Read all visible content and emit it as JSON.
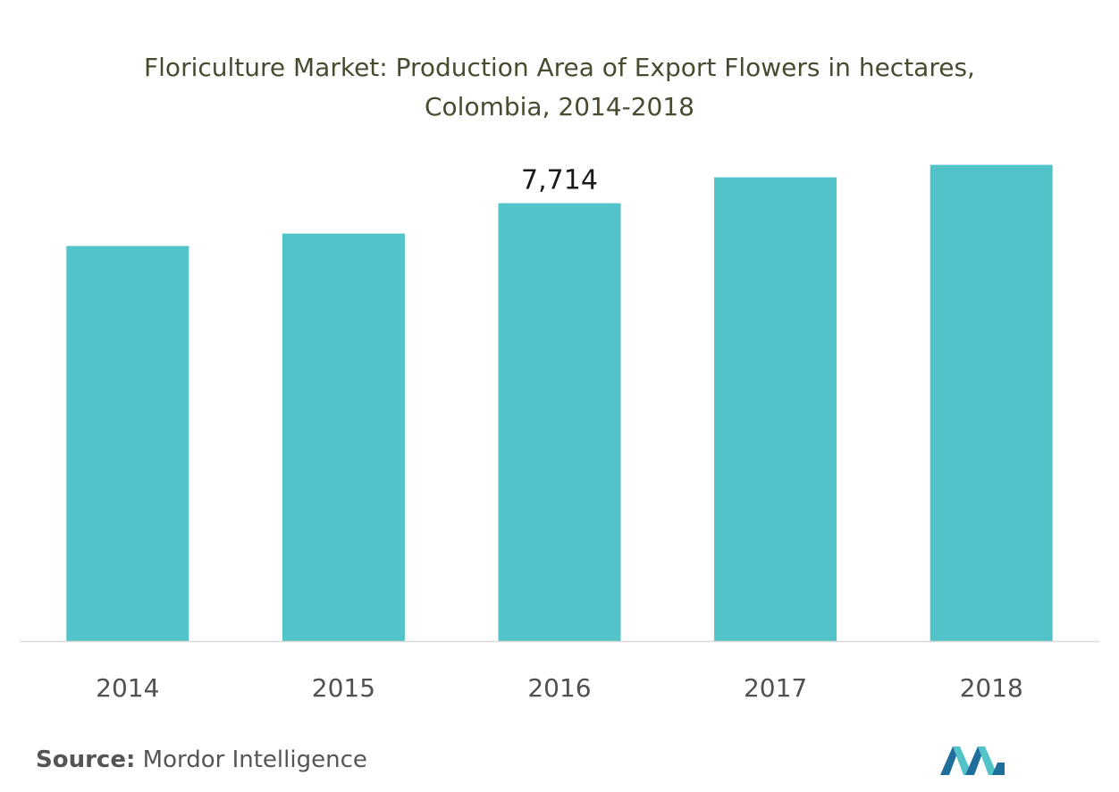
{
  "chart_title": {
    "line1": "Floriculture Market: Production  Area of Export Flowers in hectares,",
    "line2": "Colombia, 2014-2018"
  },
  "chart_data": {
    "type": "bar",
    "title": "Floriculture Market: Production  Area of Export Flowers in hectares, Colombia, 2014-2018",
    "categories": [
      "2014",
      "2015",
      "2016",
      "2017",
      "2018"
    ],
    "values": [
      6960,
      7180,
      7714,
      8170,
      8390
    ],
    "data_labels": [
      {
        "category": "2016",
        "text": "7,714"
      }
    ],
    "xlabel": "",
    "ylabel": "",
    "ylim": [
      0,
      8400
    ],
    "grid": false,
    "colors": {
      "bar": "#52c3c8",
      "axis": "#d9d9d9",
      "tick_text": "#505050",
      "label_text": "#1a1a1a"
    }
  },
  "source": {
    "label": "Source:",
    "text": "Mordor Intelligence"
  },
  "logo": {
    "icon": "mordor-intelligence-logo-icon",
    "colors": [
      "#1f6e9c",
      "#52c3c8"
    ]
  }
}
